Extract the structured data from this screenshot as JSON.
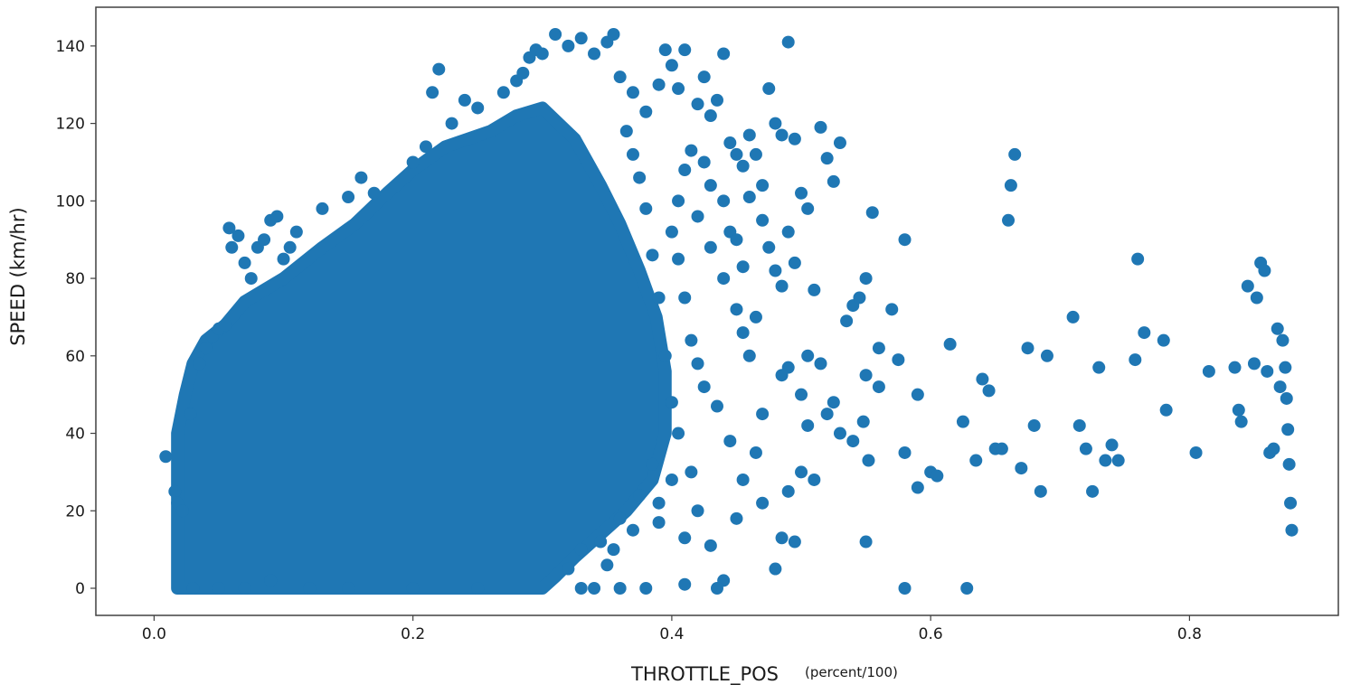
{
  "chart_data": {
    "type": "scatter",
    "title": "",
    "xlabel": "THROTTLE_POS",
    "xlabel_unit": "(percent/100)",
    "ylabel": "SPEED (km/hr)",
    "xlim": [
      -0.045,
      0.915
    ],
    "ylim": [
      -7,
      150
    ],
    "xticks": [
      0.0,
      0.2,
      0.4,
      0.6,
      0.8
    ],
    "xtick_labels": [
      "0.0",
      "0.2",
      "0.4",
      "0.6",
      "0.8"
    ],
    "yticks": [
      0,
      20,
      40,
      60,
      80,
      100,
      120,
      140
    ],
    "ytick_labels": [
      "0",
      "20",
      "40",
      "60",
      "80",
      "100",
      "120",
      "140"
    ],
    "grid": false,
    "legend": "none",
    "marker_color": "#1f77b4",
    "series": [
      {
        "dense_core": [
          [
            0.018,
            0
          ],
          [
            0.018,
            40
          ],
          [
            0.024,
            50
          ],
          [
            0.03,
            58
          ],
          [
            0.04,
            64
          ],
          [
            0.055,
            68
          ],
          [
            0.07,
            74
          ],
          [
            0.1,
            80
          ],
          [
            0.13,
            88
          ],
          [
            0.155,
            94
          ],
          [
            0.18,
            102
          ],
          [
            0.2,
            108
          ],
          [
            0.225,
            114
          ],
          [
            0.26,
            118
          ],
          [
            0.28,
            122
          ],
          [
            0.3,
            124
          ],
          [
            0.325,
            116
          ],
          [
            0.345,
            104
          ],
          [
            0.36,
            94
          ],
          [
            0.375,
            82
          ],
          [
            0.388,
            70
          ],
          [
            0.395,
            56
          ],
          [
            0.395,
            40
          ],
          [
            0.385,
            28
          ],
          [
            0.365,
            20
          ],
          [
            0.345,
            14
          ],
          [
            0.325,
            8
          ],
          [
            0.31,
            3
          ],
          [
            0.3,
            0
          ]
        ],
        "points": [
          [
            0.009,
            34
          ],
          [
            0.016,
            25
          ],
          [
            0.018,
            22
          ],
          [
            0.022,
            20
          ],
          [
            0.028,
            45
          ],
          [
            0.035,
            58
          ],
          [
            0.04,
            62
          ],
          [
            0.045,
            65
          ],
          [
            0.05,
            67
          ],
          [
            0.055,
            68
          ],
          [
            0.058,
            93
          ],
          [
            0.06,
            88
          ],
          [
            0.065,
            91
          ],
          [
            0.07,
            84
          ],
          [
            0.075,
            80
          ],
          [
            0.08,
            88
          ],
          [
            0.085,
            90
          ],
          [
            0.09,
            95
          ],
          [
            0.095,
            96
          ],
          [
            0.1,
            85
          ],
          [
            0.105,
            88
          ],
          [
            0.11,
            92
          ],
          [
            0.13,
            98
          ],
          [
            0.15,
            101
          ],
          [
            0.16,
            106
          ],
          [
            0.17,
            102
          ],
          [
            0.2,
            110
          ],
          [
            0.21,
            114
          ],
          [
            0.215,
            128
          ],
          [
            0.22,
            134
          ],
          [
            0.23,
            120
          ],
          [
            0.24,
            126
          ],
          [
            0.25,
            124
          ],
          [
            0.27,
            128
          ],
          [
            0.28,
            131
          ],
          [
            0.285,
            133
          ],
          [
            0.29,
            137
          ],
          [
            0.295,
            139
          ],
          [
            0.3,
            138
          ],
          [
            0.31,
            143
          ],
          [
            0.32,
            140
          ],
          [
            0.33,
            142
          ],
          [
            0.34,
            138
          ],
          [
            0.35,
            141
          ],
          [
            0.355,
            143
          ],
          [
            0.36,
            132
          ],
          [
            0.37,
            128
          ],
          [
            0.38,
            123
          ],
          [
            0.39,
            130
          ],
          [
            0.395,
            139
          ],
          [
            0.4,
            135
          ],
          [
            0.405,
            129
          ],
          [
            0.41,
            139
          ],
          [
            0.42,
            125
          ],
          [
            0.425,
            132
          ],
          [
            0.43,
            122
          ],
          [
            0.435,
            126
          ],
          [
            0.44,
            138
          ],
          [
            0.445,
            115
          ],
          [
            0.45,
            112
          ],
          [
            0.455,
            109
          ],
          [
            0.46,
            117
          ],
          [
            0.465,
            112
          ],
          [
            0.47,
            104
          ],
          [
            0.475,
            129
          ],
          [
            0.48,
            120
          ],
          [
            0.485,
            117
          ],
          [
            0.49,
            141
          ],
          [
            0.495,
            116
          ],
          [
            0.46,
            101
          ],
          [
            0.47,
            95
          ],
          [
            0.475,
            88
          ],
          [
            0.48,
            82
          ],
          [
            0.485,
            78
          ],
          [
            0.49,
            92
          ],
          [
            0.495,
            84
          ],
          [
            0.5,
            102
          ],
          [
            0.505,
            98
          ],
          [
            0.51,
            77
          ],
          [
            0.515,
            119
          ],
          [
            0.52,
            111
          ],
          [
            0.525,
            105
          ],
          [
            0.53,
            115
          ],
          [
            0.535,
            69
          ],
          [
            0.54,
            73
          ],
          [
            0.545,
            75
          ],
          [
            0.55,
            80
          ],
          [
            0.555,
            97
          ],
          [
            0.56,
            52
          ],
          [
            0.57,
            72
          ],
          [
            0.575,
            59
          ],
          [
            0.58,
            90
          ],
          [
            0.59,
            50
          ],
          [
            0.6,
            30
          ],
          [
            0.605,
            29
          ],
          [
            0.615,
            63
          ],
          [
            0.625,
            43
          ],
          [
            0.635,
            33
          ],
          [
            0.64,
            54
          ],
          [
            0.645,
            51
          ],
          [
            0.65,
            36
          ],
          [
            0.655,
            36
          ],
          [
            0.66,
            95
          ],
          [
            0.662,
            104
          ],
          [
            0.665,
            112
          ],
          [
            0.67,
            31
          ],
          [
            0.675,
            62
          ],
          [
            0.68,
            42
          ],
          [
            0.685,
            25
          ],
          [
            0.69,
            60
          ],
          [
            0.71,
            70
          ],
          [
            0.715,
            42
          ],
          [
            0.72,
            36
          ],
          [
            0.725,
            25
          ],
          [
            0.73,
            57
          ],
          [
            0.735,
            33
          ],
          [
            0.74,
            37
          ],
          [
            0.745,
            33
          ],
          [
            0.758,
            59
          ],
          [
            0.76,
            85
          ],
          [
            0.765,
            66
          ],
          [
            0.78,
            64
          ],
          [
            0.782,
            46
          ],
          [
            0.805,
            35
          ],
          [
            0.815,
            56
          ],
          [
            0.835,
            57
          ],
          [
            0.838,
            46
          ],
          [
            0.84,
            43
          ],
          [
            0.845,
            78
          ],
          [
            0.85,
            58
          ],
          [
            0.852,
            75
          ],
          [
            0.855,
            84
          ],
          [
            0.858,
            82
          ],
          [
            0.86,
            56
          ],
          [
            0.862,
            35
          ],
          [
            0.865,
            36
          ],
          [
            0.868,
            67
          ],
          [
            0.87,
            52
          ],
          [
            0.872,
            64
          ],
          [
            0.874,
            57
          ],
          [
            0.875,
            49
          ],
          [
            0.876,
            41
          ],
          [
            0.877,
            32
          ],
          [
            0.878,
            22
          ],
          [
            0.879,
            15
          ],
          [
            0.55,
            55
          ],
          [
            0.548,
            43
          ],
          [
            0.552,
            33
          ],
          [
            0.55,
            12
          ],
          [
            0.58,
            0
          ],
          [
            0.628,
            0
          ],
          [
            0.59,
            26
          ],
          [
            0.58,
            35
          ],
          [
            0.56,
            62
          ],
          [
            0.54,
            38
          ],
          [
            0.52,
            45
          ],
          [
            0.5,
            30
          ],
          [
            0.51,
            28
          ],
          [
            0.49,
            25
          ],
          [
            0.48,
            5
          ],
          [
            0.485,
            13
          ],
          [
            0.495,
            12
          ],
          [
            0.44,
            2
          ],
          [
            0.435,
            0
          ],
          [
            0.41,
            1
          ],
          [
            0.38,
            0
          ],
          [
            0.36,
            0
          ],
          [
            0.34,
            0
          ],
          [
            0.33,
            0
          ],
          [
            0.345,
            12
          ],
          [
            0.36,
            18
          ],
          [
            0.37,
            15
          ],
          [
            0.39,
            17
          ],
          [
            0.41,
            13
          ],
          [
            0.43,
            11
          ],
          [
            0.45,
            18
          ],
          [
            0.47,
            22
          ],
          [
            0.5,
            50
          ],
          [
            0.505,
            60
          ],
          [
            0.515,
            58
          ],
          [
            0.525,
            48
          ],
          [
            0.53,
            40
          ],
          [
            0.505,
            42
          ],
          [
            0.49,
            57
          ],
          [
            0.485,
            55
          ],
          [
            0.47,
            45
          ],
          [
            0.465,
            35
          ],
          [
            0.455,
            28
          ],
          [
            0.445,
            38
          ],
          [
            0.435,
            47
          ],
          [
            0.425,
            52
          ],
          [
            0.42,
            58
          ],
          [
            0.415,
            64
          ],
          [
            0.41,
            75
          ],
          [
            0.405,
            85
          ],
          [
            0.4,
            92
          ],
          [
            0.405,
            100
          ],
          [
            0.41,
            108
          ],
          [
            0.415,
            113
          ],
          [
            0.42,
            96
          ],
          [
            0.43,
            88
          ],
          [
            0.44,
            80
          ],
          [
            0.45,
            72
          ],
          [
            0.455,
            66
          ],
          [
            0.46,
            60
          ],
          [
            0.465,
            70
          ],
          [
            0.455,
            83
          ],
          [
            0.445,
            92
          ],
          [
            0.43,
            104
          ],
          [
            0.425,
            110
          ],
          [
            0.44,
            100
          ],
          [
            0.45,
            90
          ],
          [
            0.415,
            30
          ],
          [
            0.42,
            20
          ],
          [
            0.405,
            40
          ],
          [
            0.4,
            48
          ],
          [
            0.395,
            60
          ],
          [
            0.39,
            75
          ],
          [
            0.385,
            86
          ],
          [
            0.38,
            98
          ],
          [
            0.375,
            106
          ],
          [
            0.37,
            112
          ],
          [
            0.365,
            118
          ],
          [
            0.375,
            24
          ],
          [
            0.385,
            32
          ],
          [
            0.39,
            22
          ],
          [
            0.4,
            28
          ],
          [
            0.355,
            10
          ],
          [
            0.35,
            6
          ],
          [
            0.33,
            10
          ],
          [
            0.32,
            5
          ],
          [
            0.03,
            0
          ],
          [
            0.05,
            0
          ],
          [
            0.07,
            0
          ],
          [
            0.09,
            2
          ],
          [
            0.12,
            0
          ],
          [
            0.15,
            0
          ],
          [
            0.2,
            0
          ],
          [
            0.25,
            0
          ]
        ]
      }
    ]
  }
}
